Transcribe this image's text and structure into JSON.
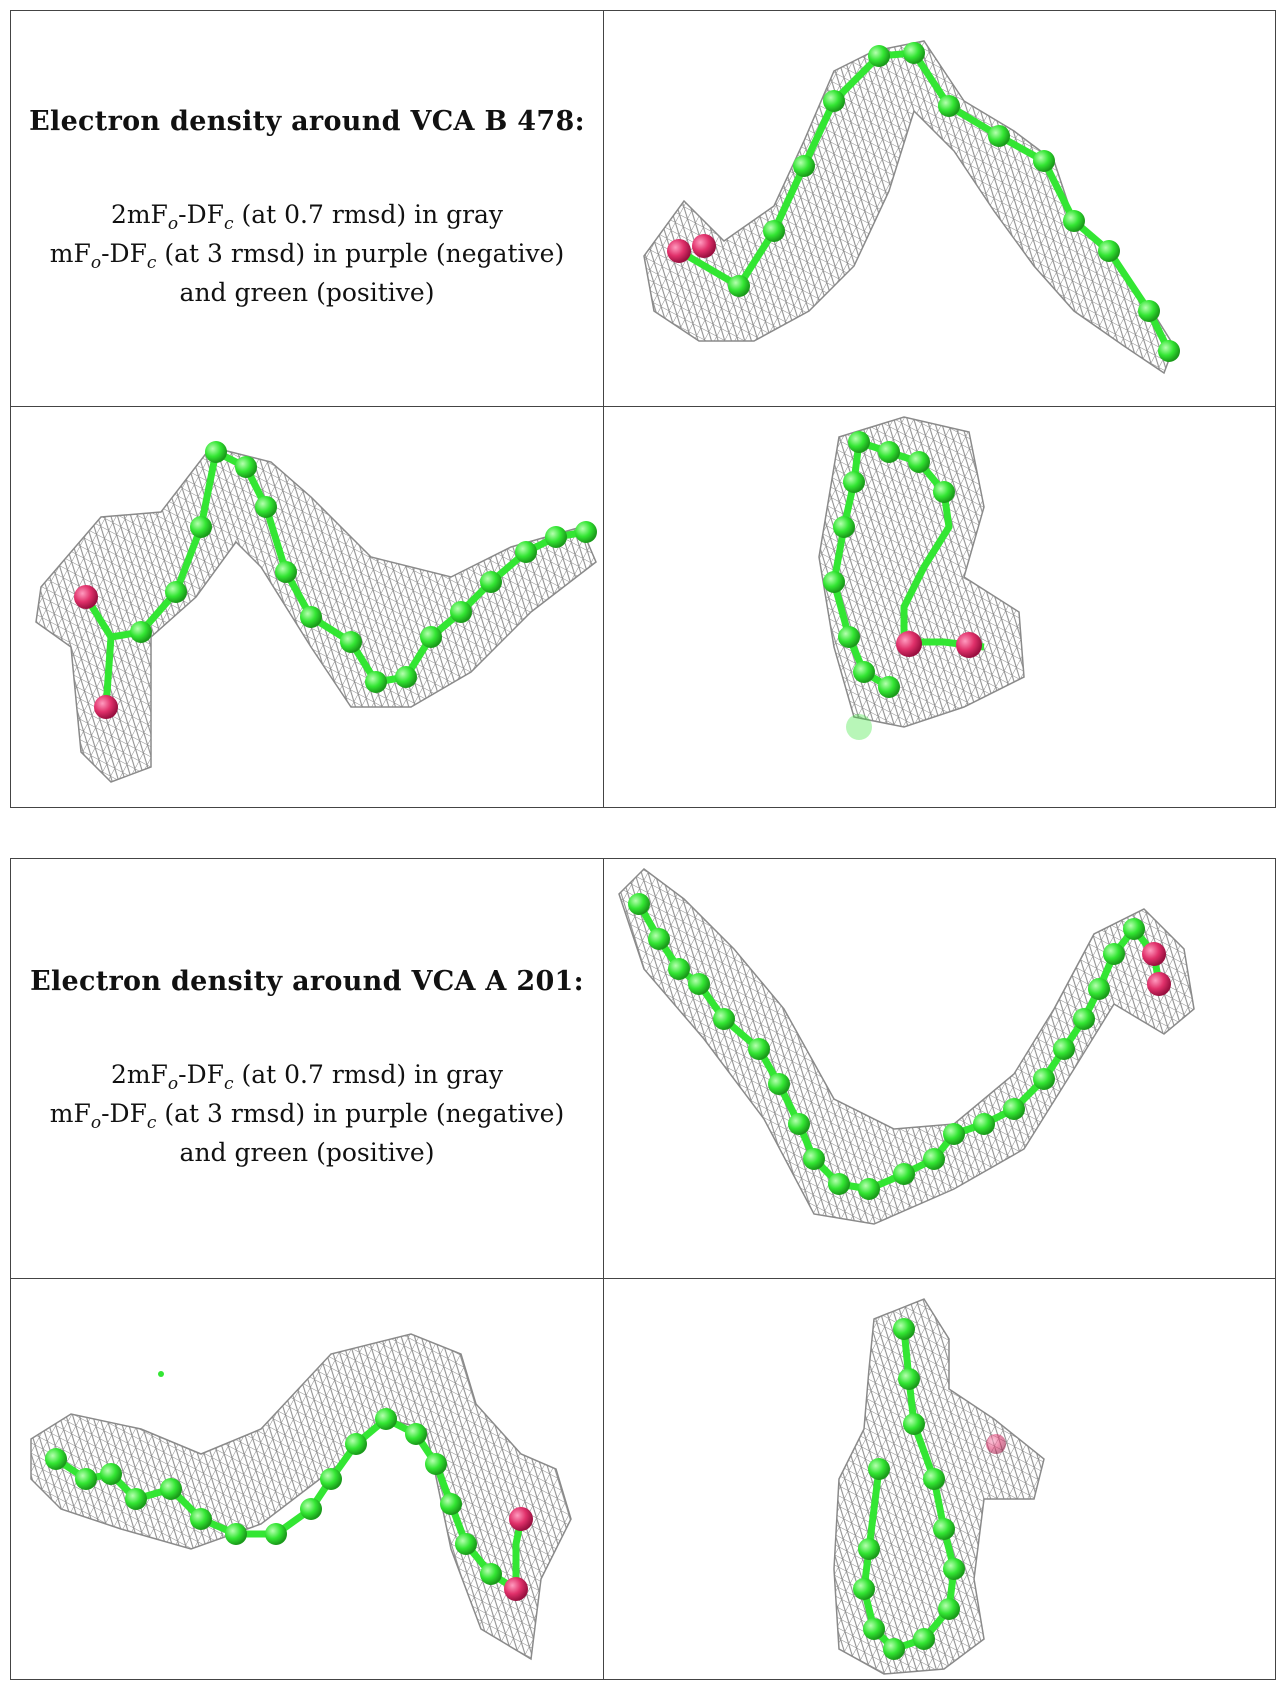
{
  "panels": [
    {
      "heading": "Electron density around VCA B 478:",
      "legend": {
        "l1_pre": "2mF",
        "l1_sub1": "o",
        "l1_mid": "-DF",
        "l1_sub2": "c",
        "l1_post": " (at 0.7 rmsd) in gray",
        "l2_pre": "mF",
        "l2_sub1": "o",
        "l2_mid": "-DF",
        "l2_sub2": "c",
        "l2_post": " (at 3 rmsd) in purple (negative)",
        "l3": "and green (positive)"
      }
    },
    {
      "heading": "Electron density around VCA A 201:",
      "legend": {
        "l1_pre": "2mF",
        "l1_sub1": "o",
        "l1_mid": "-DF",
        "l1_sub2": "c",
        "l1_post": " (at 0.7 rmsd) in gray",
        "l2_pre": "mF",
        "l2_sub1": "o",
        "l2_mid": "-DF",
        "l2_sub2": "c",
        "l2_post": " (at 3 rmsd) in purple (negative)",
        "l3": "and green (positive)"
      }
    }
  ],
  "colors": {
    "mesh": "#8a8a8a",
    "carbon": "#33e633",
    "oxygen": "#e0306a"
  }
}
